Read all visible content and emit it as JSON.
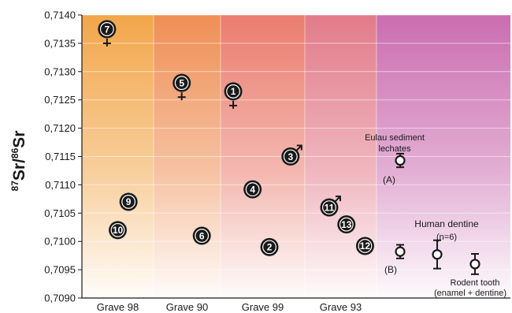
{
  "chart_data": {
    "type": "scatter",
    "ylabel_super1": "87",
    "ylabel_mid": "Sr/",
    "ylabel_super2": "86",
    "ylabel_end": "Sr",
    "ylim": [
      0.709,
      0.714
    ],
    "yticks": [
      0.709,
      0.7095,
      0.71,
      0.7105,
      0.711,
      0.7115,
      0.712,
      0.7125,
      0.713,
      0.7135,
      0.714
    ],
    "ytick_labels": [
      "0,7090",
      "0,7095",
      "0,7100",
      "0,7105",
      "0,7110",
      "0,7115",
      "0,7120",
      "0,7125",
      "0,7130",
      "0,7135",
      "0,7140"
    ],
    "grid": true,
    "categories": [
      "Grave 98",
      "Grave 90",
      "Grave 99",
      "Grave 93"
    ],
    "band_colors": [
      "#f2a64a",
      "#ef8f55",
      "#ea7d6e",
      "#e27b8a",
      "#cb6db0"
    ],
    "individuals": [
      {
        "id": "7",
        "label": "7",
        "grave": "Grave 98",
        "xpos": 0.35,
        "y": 0.71375,
        "sex": "female"
      },
      {
        "id": "9",
        "label": "9",
        "grave": "Grave 98",
        "xpos": 0.65,
        "y": 0.7107,
        "sex": ""
      },
      {
        "id": "10",
        "label": "10",
        "grave": "Grave 98",
        "xpos": 0.5,
        "y": 0.7102,
        "sex": ""
      },
      {
        "id": "5",
        "label": "5",
        "grave": "Grave 90",
        "xpos": 0.42,
        "y": 0.7128,
        "sex": "female"
      },
      {
        "id": "6",
        "label": "6",
        "grave": "Grave 90",
        "xpos": 0.72,
        "y": 0.7101,
        "sex": ""
      },
      {
        "id": "1",
        "label": "1",
        "grave": "Grave 99",
        "xpos": 0.15,
        "y": 0.71265,
        "sex": "female"
      },
      {
        "id": "3",
        "label": "3",
        "grave": "Grave 99",
        "xpos": 0.83,
        "y": 0.7115,
        "sex": "male"
      },
      {
        "id": "4",
        "label": "4",
        "grave": "Grave 99",
        "xpos": 0.38,
        "y": 0.71092,
        "sex": ""
      },
      {
        "id": "2",
        "label": "2",
        "grave": "Grave 99",
        "xpos": 0.58,
        "y": 0.7099,
        "sex": ""
      },
      {
        "id": "11",
        "label": "11",
        "grave": "Grave 93",
        "xpos": 0.34,
        "y": 0.7106,
        "sex": "male"
      },
      {
        "id": "13",
        "label": "13",
        "grave": "Grave 93",
        "xpos": 0.58,
        "y": 0.7103,
        "sex": ""
      },
      {
        "id": "12",
        "label": "12",
        "grave": "Grave 93",
        "xpos": 0.84,
        "y": 0.70992,
        "sex": ""
      }
    ],
    "references": [
      {
        "id": "sediment-a",
        "y": 0.71143,
        "err": 0.00012
      },
      {
        "id": "dentine-b",
        "y": 0.70982,
        "err": 0.00012
      },
      {
        "id": "dentine-mean",
        "y": 0.70977,
        "err": 0.00025
      },
      {
        "id": "rodent",
        "y": 0.7096,
        "err": 0.00018
      }
    ],
    "annotations": {
      "sediment_line1": "Eulau sediment",
      "sediment_line2": "lechates",
      "sediment_tag": "(A)",
      "dentine_line1": "Human dentine",
      "dentine_line2": "(n=6)",
      "dentine_tag": "(B)",
      "rodent_line1": "Rodent tooth",
      "rodent_line2": "(enamel + dentine)"
    }
  }
}
